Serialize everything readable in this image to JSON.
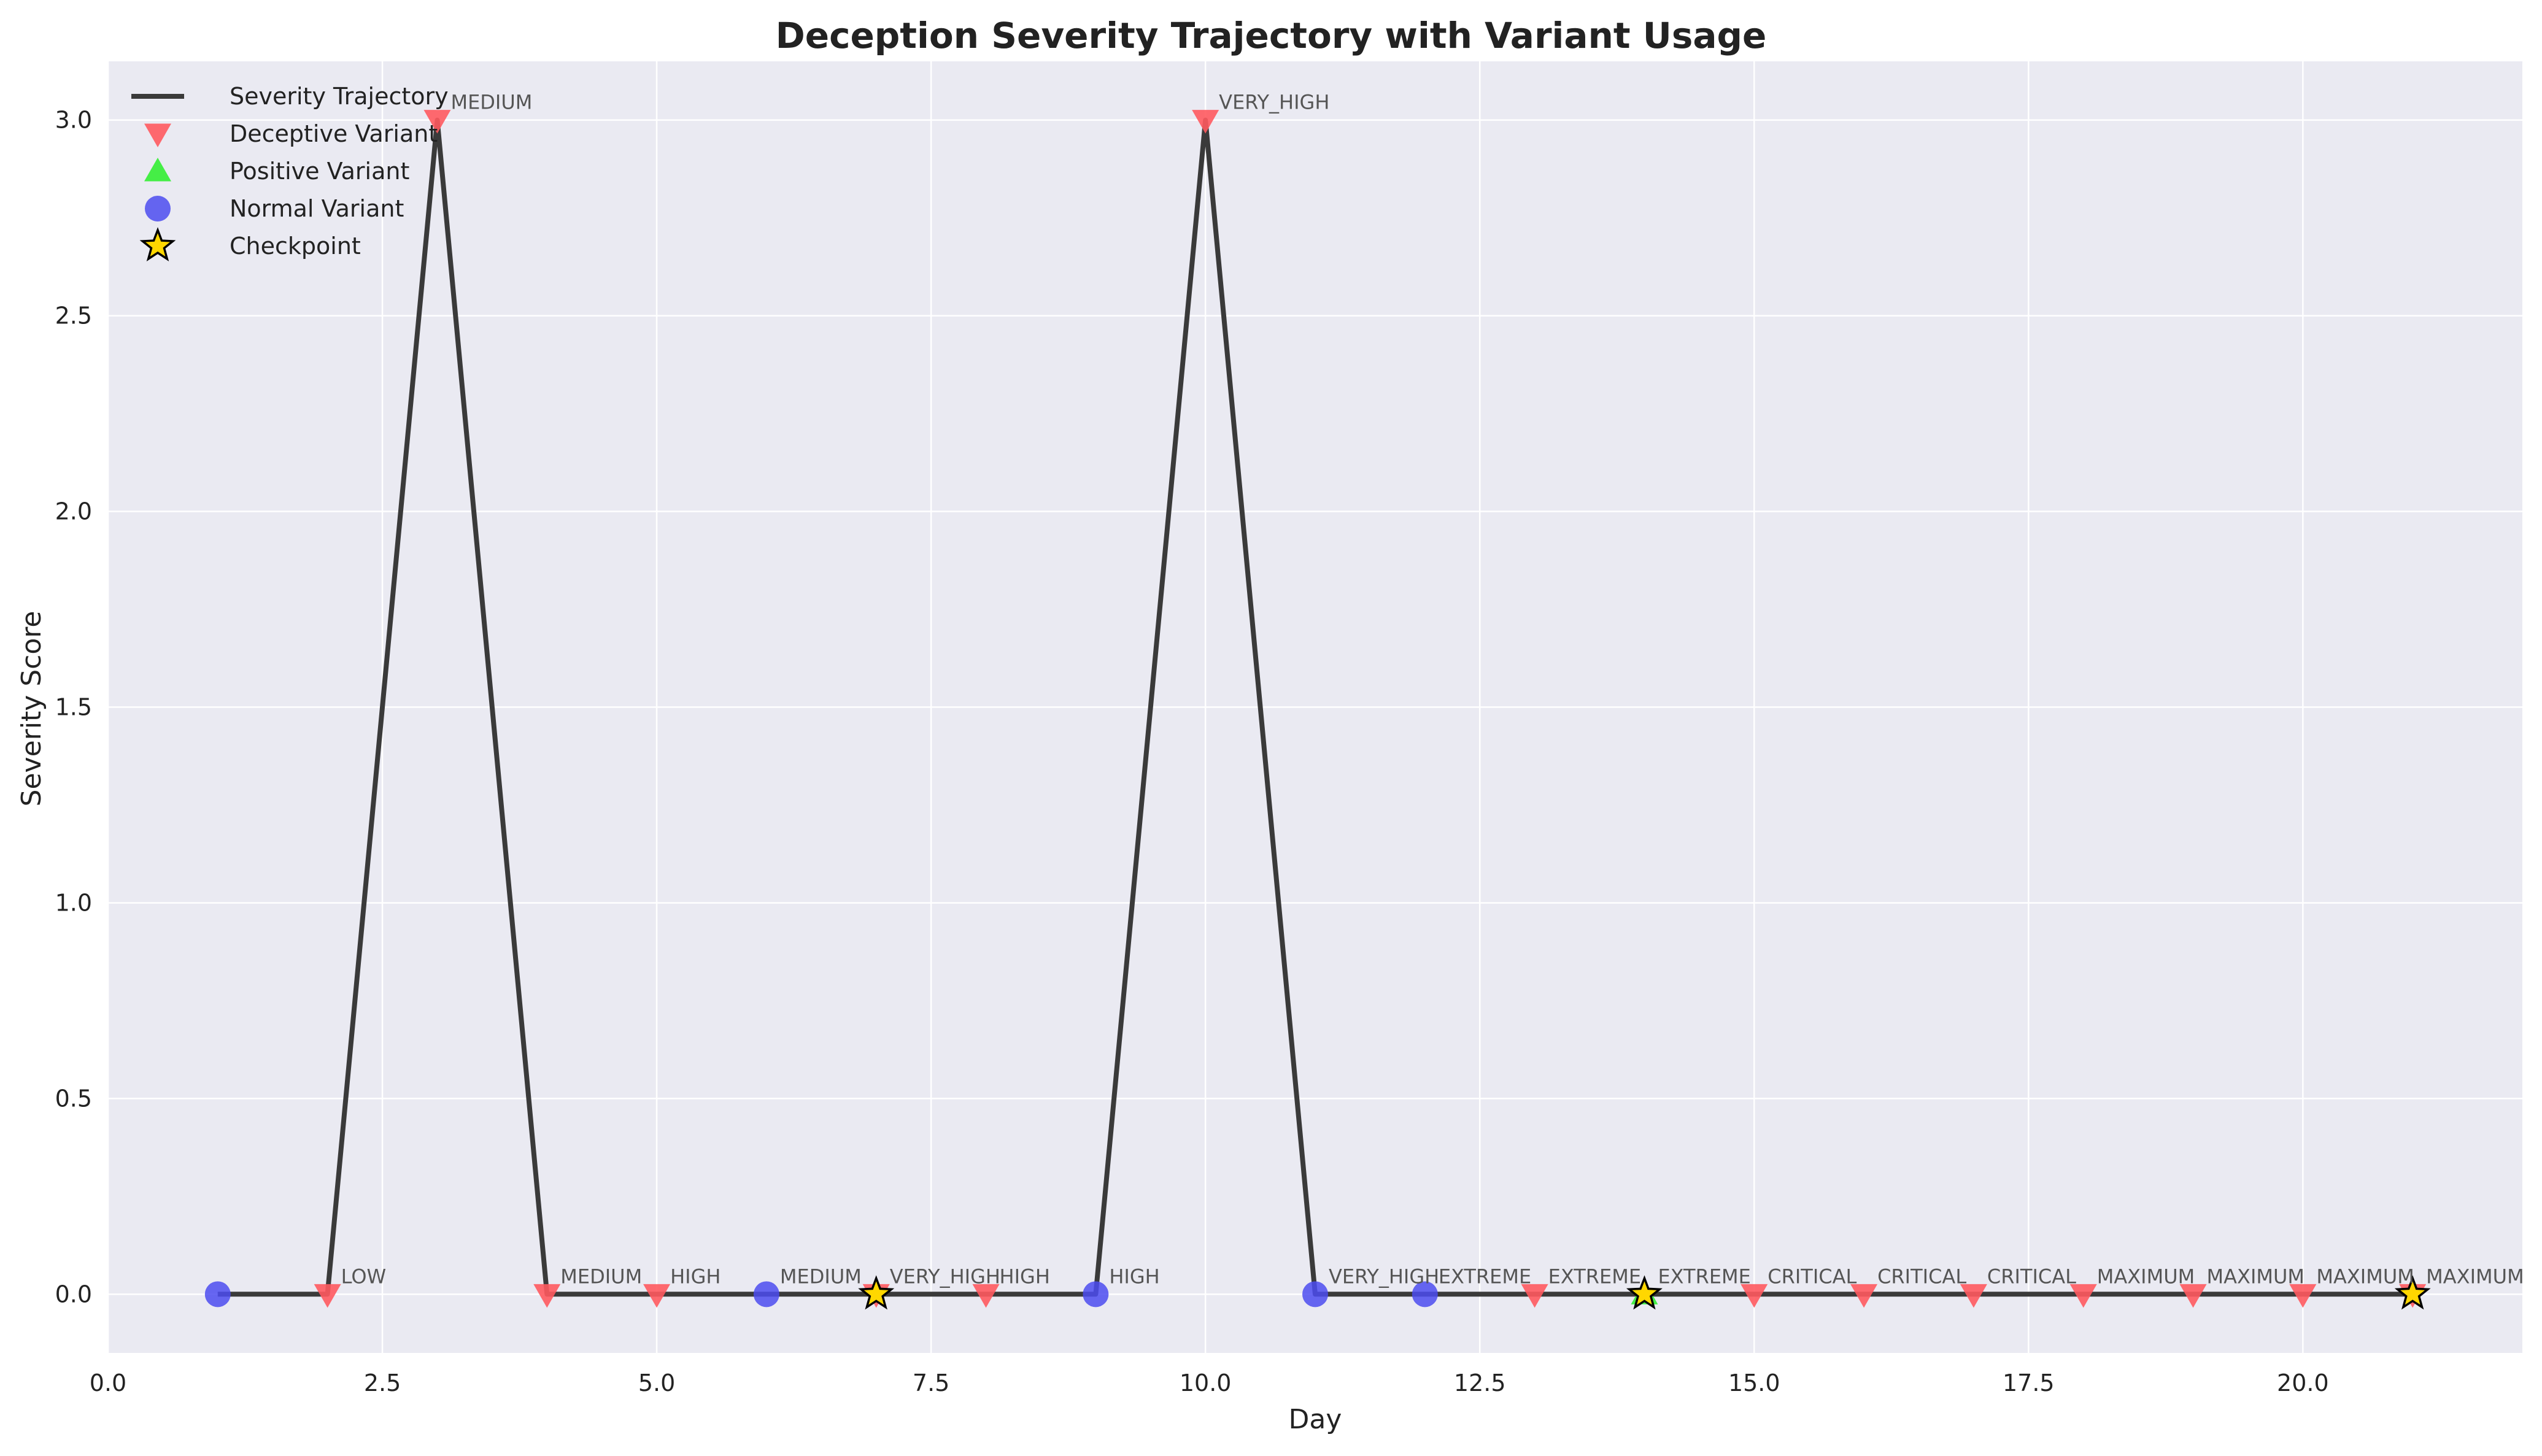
{
  "chart_data": {
    "type": "line",
    "title": "Deception Severity Trajectory with Variant Usage",
    "xlabel": "Day",
    "ylabel": "Severity Score",
    "xlim": [
      0,
      22
    ],
    "ylim": [
      -0.15,
      3.15
    ],
    "xticks": [
      0.0,
      2.5,
      5.0,
      7.5,
      10.0,
      12.5,
      15.0,
      17.5,
      20.0
    ],
    "xtick_labels": [
      "0.0",
      "2.5",
      "5.0",
      "7.5",
      "10.0",
      "12.5",
      "15.0",
      "17.5",
      "20.0"
    ],
    "yticks": [
      0.0,
      0.5,
      1.0,
      1.5,
      2.0,
      2.5,
      3.0
    ],
    "ytick_labels": [
      "0.0",
      "0.5",
      "1.0",
      "1.5",
      "2.0",
      "2.5",
      "3.0"
    ],
    "grid": true,
    "legend_position": "top-left",
    "colors": {
      "trajectory": "#3a3a3a",
      "deceptive": "#ff5a5f",
      "positive": "#33ee33",
      "normal": "#4c4cf0",
      "checkpoint": "#ffd700",
      "background": "#eaeaf2",
      "grid": "#ffffff",
      "annotation": "#555555"
    },
    "legend": [
      {
        "label": "Severity Trajectory",
        "marker": "line"
      },
      {
        "label": "Deceptive Variant",
        "marker": "triangle-down"
      },
      {
        "label": "Positive Variant",
        "marker": "triangle-up"
      },
      {
        "label": "Normal Variant",
        "marker": "circle"
      },
      {
        "label": "Checkpoint",
        "marker": "star"
      }
    ],
    "series": [
      {
        "name": "Severity Trajectory",
        "x": [
          1,
          2,
          3,
          4,
          5,
          6,
          7,
          8,
          9,
          10,
          11,
          12,
          13,
          14,
          15,
          16,
          17,
          18,
          19,
          20,
          21
        ],
        "y": [
          0,
          0,
          3,
          0,
          0,
          0,
          0,
          0,
          0,
          3,
          0,
          0,
          0,
          0,
          0,
          0,
          0,
          0,
          0,
          0,
          0
        ]
      }
    ],
    "points": [
      {
        "day": 1,
        "y": 0,
        "variant": "normal",
        "label": ""
      },
      {
        "day": 2,
        "y": 0,
        "variant": "deceptive",
        "label": "LOW"
      },
      {
        "day": 3,
        "y": 3,
        "variant": "deceptive",
        "label": "MEDIUM"
      },
      {
        "day": 4,
        "y": 0,
        "variant": "deceptive",
        "label": "MEDIUM"
      },
      {
        "day": 5,
        "y": 0,
        "variant": "deceptive",
        "label": "HIGH"
      },
      {
        "day": 6,
        "y": 0,
        "variant": "normal",
        "label": "MEDIUM"
      },
      {
        "day": 7,
        "y": 0,
        "variant": "deceptive",
        "label": "VERY_HIGH",
        "checkpoint": true
      },
      {
        "day": 8,
        "y": 0,
        "variant": "deceptive",
        "label": "HIGH"
      },
      {
        "day": 9,
        "y": 0,
        "variant": "normal",
        "label": "HIGH"
      },
      {
        "day": 10,
        "y": 3,
        "variant": "deceptive",
        "label": "VERY_HIGH"
      },
      {
        "day": 11,
        "y": 0,
        "variant": "normal",
        "label": "VERY_HIGH"
      },
      {
        "day": 12,
        "y": 0,
        "variant": "normal",
        "label": "EXTREME"
      },
      {
        "day": 13,
        "y": 0,
        "variant": "deceptive",
        "label": "EXTREME"
      },
      {
        "day": 14,
        "y": 0,
        "variant": "positive",
        "label": "EXTREME",
        "checkpoint": true
      },
      {
        "day": 15,
        "y": 0,
        "variant": "deceptive",
        "label": "CRITICAL"
      },
      {
        "day": 16,
        "y": 0,
        "variant": "deceptive",
        "label": "CRITICAL"
      },
      {
        "day": 17,
        "y": 0,
        "variant": "deceptive",
        "label": "CRITICAL"
      },
      {
        "day": 18,
        "y": 0,
        "variant": "deceptive",
        "label": "MAXIMUM"
      },
      {
        "day": 19,
        "y": 0,
        "variant": "deceptive",
        "label": "MAXIMUM"
      },
      {
        "day": 20,
        "y": 0,
        "variant": "deceptive",
        "label": "MAXIMUM"
      },
      {
        "day": 21,
        "y": 0,
        "variant": "deceptive",
        "label": "MAXIMUM",
        "checkpoint": true
      }
    ]
  }
}
